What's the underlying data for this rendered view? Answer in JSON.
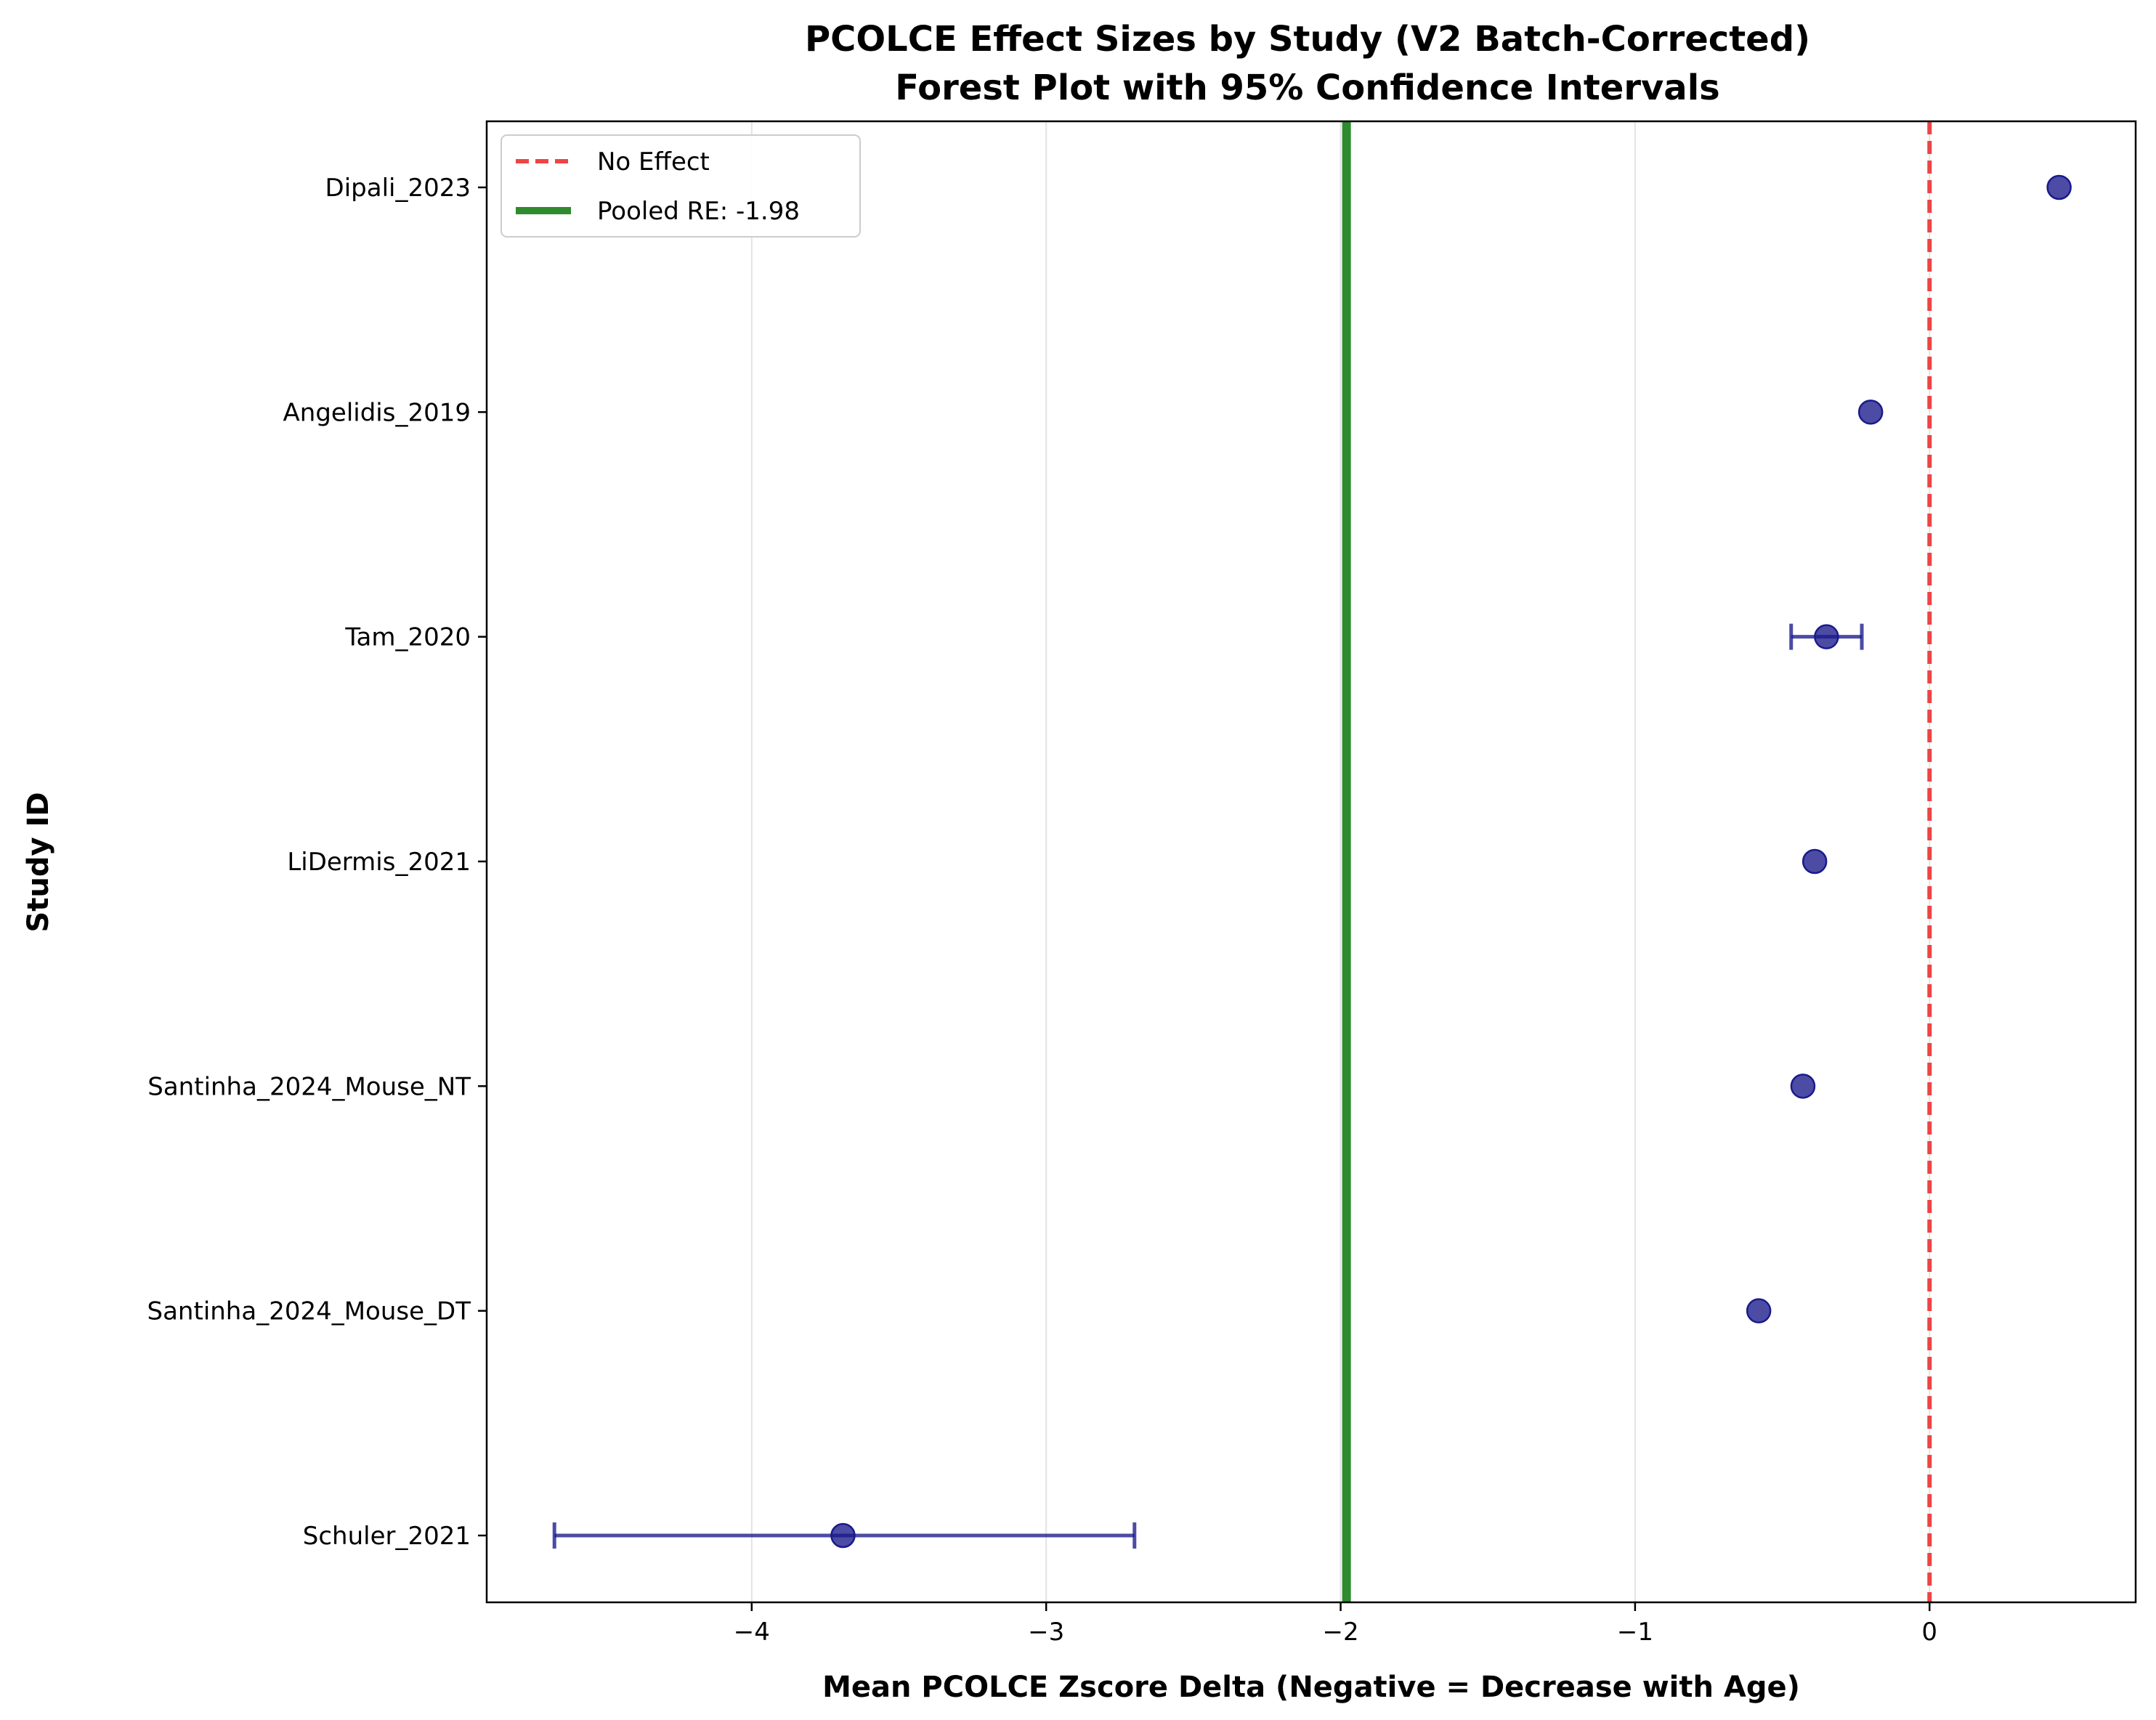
{
  "chart_data": {
    "type": "scatter",
    "subtype": "forest-plot",
    "title": "PCOLCE Effect Sizes by Study (V2 Batch-Corrected)",
    "subtitle": "Forest Plot with 95% Confidence Intervals",
    "xlabel": "Mean PCOLCE Zscore Delta (Negative = Decrease with Age)",
    "ylabel": "Study ID",
    "xlim": [
      -4.9,
      0.7
    ],
    "x_ticks": [
      {
        "value": -4,
        "label": "−4"
      },
      {
        "value": -3,
        "label": "−3"
      },
      {
        "value": -2,
        "label": "−2"
      },
      {
        "value": -1,
        "label": "−1"
      },
      {
        "value": 0,
        "label": "0"
      }
    ],
    "grid": "vertical",
    "legend_position": "top-left",
    "studies": [
      {
        "name": "Dipali_2023",
        "effect": 0.44,
        "ci_low": 0.44,
        "ci_high": 0.44
      },
      {
        "name": "Angelidis_2019",
        "effect": -0.2,
        "ci_low": -0.2,
        "ci_high": -0.2
      },
      {
        "name": "Tam_2020",
        "effect": -0.35,
        "ci_low": -0.47,
        "ci_high": -0.23
      },
      {
        "name": "LiDermis_2021",
        "effect": -0.39,
        "ci_low": -0.39,
        "ci_high": -0.39
      },
      {
        "name": "Santinha_2024_Mouse_NT",
        "effect": -0.43,
        "ci_low": -0.43,
        "ci_high": -0.43
      },
      {
        "name": "Santinha_2024_Mouse_DT",
        "effect": -0.58,
        "ci_low": -0.58,
        "ci_high": -0.58
      },
      {
        "name": "Schuler_2021",
        "effect": -3.69,
        "ci_low": -4.67,
        "ci_high": -2.7
      }
    ],
    "reference_lines": [
      {
        "name": "No Effect",
        "x": 0,
        "style": "dashed",
        "color": "#ee4444"
      },
      {
        "name": "Pooled RE: -1.98",
        "x": -1.98,
        "style": "solid",
        "color": "#2e8b2e"
      }
    ],
    "colors": {
      "points": "#1a1a8c",
      "no_effect": "#ee4444",
      "pooled": "#2e8b2e"
    }
  }
}
